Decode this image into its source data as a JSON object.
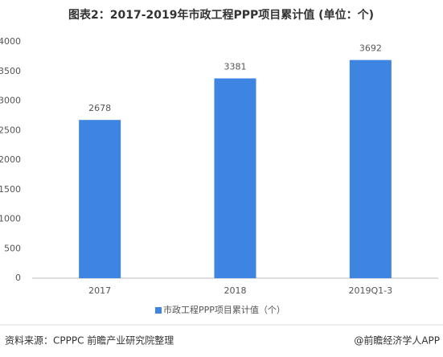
{
  "chart_data": {
    "type": "bar",
    "title": "图表2：2017-2019年市政工程PPP项目累计值 (单位：个)",
    "categories": [
      "2017",
      "2018",
      "2019Q1-3"
    ],
    "series": [
      {
        "name": "市政工程PPP项目累计值（个）",
        "color": "#3d85e0",
        "values": [
          2678,
          3381,
          3692
        ]
      }
    ],
    "ylim": [
      0,
      4000
    ],
    "yticks": [
      0,
      500,
      1000,
      1500,
      2000,
      2500,
      3000,
      3500,
      4000
    ],
    "grid": false,
    "legend": "bottom",
    "source": "资料来源：CPPPC 前瞻产业研究院整理",
    "credit": "@前瞻经济学人APP"
  }
}
